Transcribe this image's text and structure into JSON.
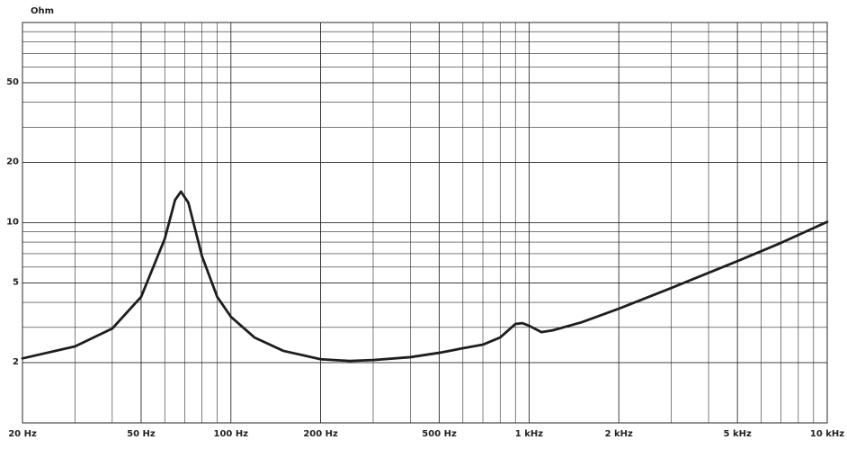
{
  "chart_data": {
    "type": "line",
    "y_label": "Ohm",
    "log_x": true,
    "log_y": true,
    "grid": true,
    "minor_grid": true,
    "xlim": [
      20,
      10000
    ],
    "ylim": [
      1,
      100
    ],
    "xticks": [
      {
        "value": 20,
        "label": "20 Hz"
      },
      {
        "value": 50,
        "label": "50 Hz"
      },
      {
        "value": 100,
        "label": "100 Hz"
      },
      {
        "value": 200,
        "label": "200 Hz"
      },
      {
        "value": 500,
        "label": "500 Hz"
      },
      {
        "value": 1000,
        "label": "1 kHz"
      },
      {
        "value": 2000,
        "label": "2 kHz"
      },
      {
        "value": 5000,
        "label": "5 kHz"
      },
      {
        "value": 10000,
        "label": "10 kHz"
      }
    ],
    "yticks": [
      2,
      5,
      10,
      20,
      50
    ],
    "color": "#1e1e1e",
    "x": [
      20,
      30,
      40,
      50,
      60,
      65,
      68,
      72,
      80,
      90,
      100,
      120,
      150,
      200,
      250,
      300,
      400,
      500,
      600,
      700,
      800,
      900,
      950,
      1000,
      1100,
      1200,
      1500,
      2000,
      3000,
      5000,
      7000,
      10000
    ],
    "values": [
      2.1,
      2.41,
      2.96,
      4.26,
      8.3,
      13.0,
      14.3,
      12.6,
      6.8,
      4.26,
      3.39,
      2.67,
      2.29,
      2.08,
      2.04,
      2.06,
      2.13,
      2.24,
      2.36,
      2.46,
      2.67,
      3.12,
      3.15,
      3.06,
      2.84,
      2.9,
      3.18,
      3.72,
      4.72,
      6.43,
      7.93,
      10.1
    ]
  }
}
